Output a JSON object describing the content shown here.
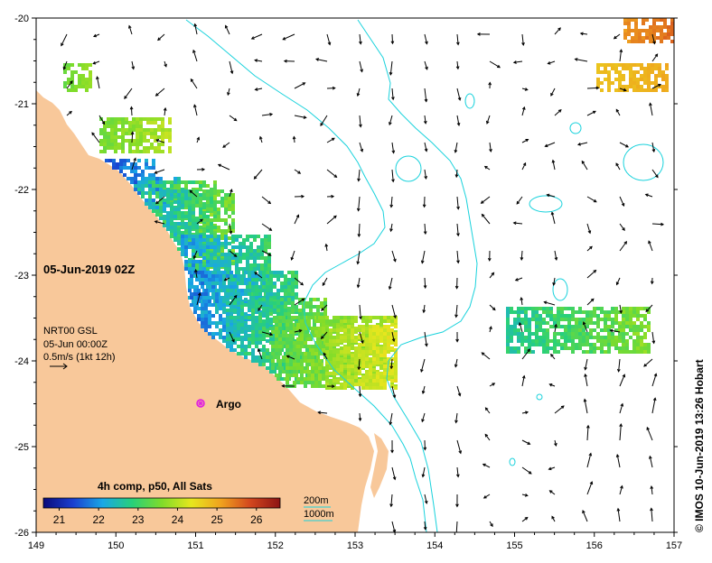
{
  "map": {
    "date_label": "05-Jun-2019 02Z",
    "vector_info": {
      "source": "NRT00 GSL",
      "time": "05-Jun 00:00Z",
      "scale": "0.5m/s (1kt 12h)"
    },
    "argo_label": "Argo",
    "colorbar": {
      "title": "4h comp, p50, All Sats",
      "ticks": [
        "21",
        "22",
        "23",
        "24",
        "25",
        "26"
      ],
      "range": [
        20.6,
        26.6
      ],
      "colors": [
        "#0a0a7a",
        "#1a3fd0",
        "#19a7e6",
        "#28d07a",
        "#7fdc2a",
        "#e6e61e",
        "#f0a21e",
        "#d2461e",
        "#8c1414"
      ]
    },
    "depth_legend": {
      "c200": "200m",
      "c1000": "1000m",
      "contour_color": "#19d2dc"
    },
    "credit": "© IMOS 10-Jun-2019 13:26 Hobart",
    "lon_ticks": [
      "149",
      "150",
      "151",
      "152",
      "153",
      "154",
      "155",
      "156",
      "157"
    ],
    "lat_ticks": [
      "-20",
      "-21",
      "-22",
      "-23",
      "-24",
      "-25",
      "-26"
    ],
    "land_color": "#f8c89a"
  }
}
